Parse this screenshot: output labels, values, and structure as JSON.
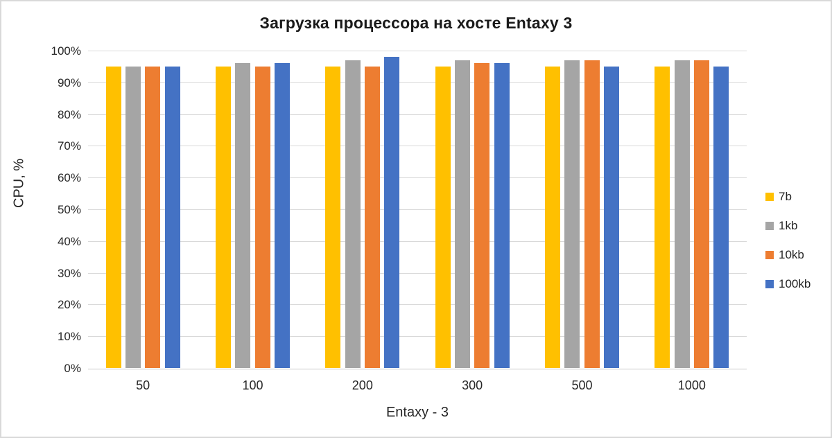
{
  "chart_data": {
    "type": "bar",
    "title": "Загрузка процессора на хосте Entaxy 3",
    "xlabel": "Entaxy - 3",
    "ylabel": "CPU, %",
    "categories": [
      "50",
      "100",
      "200",
      "300",
      "500",
      "1000"
    ],
    "series": [
      {
        "name": "7b",
        "color": "#FFC000",
        "values": [
          95,
          95,
          95,
          95,
          95,
          95
        ]
      },
      {
        "name": "1kb",
        "color": "#A5A5A5",
        "values": [
          95,
          96,
          97,
          97,
          97,
          97
        ]
      },
      {
        "name": "10kb",
        "color": "#ED7D31",
        "values": [
          95,
          95,
          95,
          96,
          97,
          97
        ]
      },
      {
        "name": "100kb",
        "color": "#4472C4",
        "values": [
          95,
          96,
          98,
          96,
          95,
          95
        ]
      }
    ],
    "ylim": [
      0,
      100
    ],
    "ytick_step": 10,
    "ytick_suffix": "%",
    "grid": true,
    "legend_position": "right"
  },
  "style": {
    "background": "#FFFFFF",
    "border_color": "#D9D9D9",
    "gridline_color": "#D9D9D9",
    "text_color": "#262626"
  }
}
